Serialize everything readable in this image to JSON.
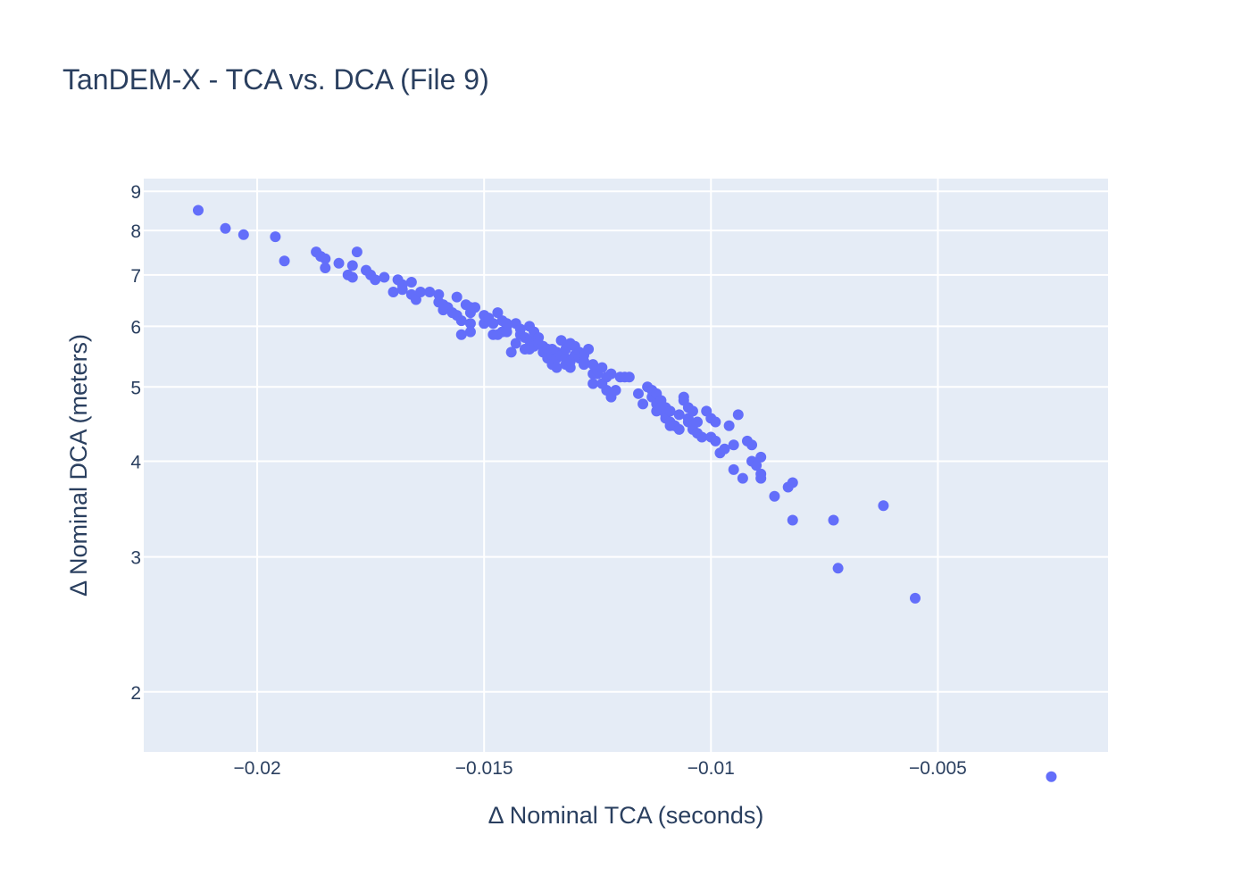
{
  "chart_data": {
    "type": "scatter",
    "title": "TanDEM-X - TCA vs. DCA (File 9)",
    "xlabel": "Δ Nominal TCA (seconds)",
    "ylabel": "Δ Nominal DCA (meters)",
    "xlim": [
      -0.0225,
      -0.00125
    ],
    "ylim": [
      1.67,
      9.35
    ],
    "y_scale": "log",
    "grid": true,
    "legend": "none",
    "colors": {
      "marker": "#636efa",
      "plot_bg": "#e5ecf6",
      "grid": "#ffffff",
      "text": "#2a3f5f"
    },
    "x_ticks": [
      -0.02,
      -0.015,
      -0.01,
      -0.005
    ],
    "x_tick_labels": [
      "−0.02",
      "−0.015",
      "−0.01",
      "−0.005"
    ],
    "y_ticks": [
      2,
      3,
      4,
      5,
      6,
      7,
      8,
      9
    ],
    "y_tick_labels": [
      "2",
      "3",
      "4",
      "5",
      "6",
      "7",
      "8",
      "9"
    ],
    "x": [
      -0.0213,
      -0.0207,
      -0.0203,
      -0.0196,
      -0.0194,
      -0.0187,
      -0.0186,
      -0.0185,
      -0.0185,
      -0.0182,
      -0.018,
      -0.0179,
      -0.0179,
      -0.0178,
      -0.0176,
      -0.0175,
      -0.0174,
      -0.0172,
      -0.017,
      -0.0169,
      -0.0168,
      -0.0168,
      -0.0166,
      -0.0166,
      -0.0165,
      -0.0164,
      -0.0162,
      -0.016,
      -0.016,
      -0.0159,
      -0.0159,
      -0.0158,
      -0.0157,
      -0.0156,
      -0.0156,
      -0.0155,
      -0.0155,
      -0.0154,
      -0.0153,
      -0.0153,
      -0.0153,
      -0.0153,
      -0.0152,
      -0.015,
      -0.015,
      -0.0149,
      -0.0148,
      -0.0148,
      -0.0147,
      -0.0147,
      -0.0146,
      -0.0146,
      -0.0145,
      -0.0145,
      -0.0145,
      -0.0144,
      -0.0143,
      -0.0143,
      -0.0142,
      -0.0142,
      -0.0141,
      -0.0141,
      -0.014,
      -0.014,
      -0.014,
      -0.0139,
      -0.0139,
      -0.0139,
      -0.0138,
      -0.0138,
      -0.0137,
      -0.0137,
      -0.0136,
      -0.0136,
      -0.0135,
      -0.0135,
      -0.0135,
      -0.0134,
      -0.0134,
      -0.0134,
      -0.0133,
      -0.0133,
      -0.0132,
      -0.0132,
      -0.0132,
      -0.0131,
      -0.0131,
      -0.0131,
      -0.013,
      -0.013,
      -0.0129,
      -0.0129,
      -0.0128,
      -0.0128,
      -0.0128,
      -0.0127,
      -0.0126,
      -0.0126,
      -0.0126,
      -0.0125,
      -0.0125,
      -0.0124,
      -0.0124,
      -0.0123,
      -0.0123,
      -0.0122,
      -0.0122,
      -0.0121,
      -0.012,
      -0.0119,
      -0.0118,
      -0.0116,
      -0.0115,
      -0.0114,
      -0.0113,
      -0.0113,
      -0.0112,
      -0.0112,
      -0.0112,
      -0.0111,
      -0.0111,
      -0.011,
      -0.011,
      -0.011,
      -0.0109,
      -0.0109,
      -0.0109,
      -0.0108,
      -0.0108,
      -0.0107,
      -0.0107,
      -0.0106,
      -0.0106,
      -0.0105,
      -0.0105,
      -0.0105,
      -0.0104,
      -0.0104,
      -0.0104,
      -0.0103,
      -0.0103,
      -0.0102,
      -0.0101,
      -0.01,
      -0.01,
      -0.0099,
      -0.0099,
      -0.0098,
      -0.0097,
      -0.0096,
      -0.0095,
      -0.0095,
      -0.0094,
      -0.0093,
      -0.0092,
      -0.0091,
      -0.0091,
      -0.009,
      -0.0089,
      -0.0089,
      -0.0089,
      -0.0086,
      -0.0083,
      -0.0082,
      -0.0082,
      -0.0073,
      -0.0072,
      -0.0062,
      -0.0055,
      -0.0025
    ],
    "y": [
      8.5,
      8.05,
      7.9,
      7.85,
      7.3,
      7.5,
      7.4,
      7.15,
      7.35,
      7.25,
      7.0,
      6.95,
      7.2,
      7.5,
      7.1,
      7.0,
      6.9,
      6.95,
      6.65,
      6.9,
      6.7,
      6.8,
      6.85,
      6.6,
      6.5,
      6.65,
      6.65,
      6.6,
      6.45,
      6.3,
      6.4,
      6.35,
      6.25,
      6.2,
      6.55,
      6.1,
      5.85,
      6.4,
      6.35,
      6.25,
      6.05,
      5.9,
      6.35,
      6.2,
      6.05,
      6.15,
      6.05,
      5.85,
      5.85,
      6.25,
      5.9,
      6.1,
      6.0,
      5.9,
      6.05,
      5.55,
      5.7,
      6.05,
      5.95,
      5.85,
      5.8,
      5.6,
      6.0,
      5.75,
      5.6,
      5.7,
      5.65,
      5.9,
      5.8,
      5.7,
      5.65,
      5.55,
      5.6,
      5.45,
      5.5,
      5.35,
      5.6,
      5.55,
      5.45,
      5.3,
      5.75,
      5.5,
      5.35,
      5.45,
      5.6,
      5.3,
      5.4,
      5.7,
      5.5,
      5.65,
      5.55,
      5.45,
      5.35,
      5.5,
      5.4,
      5.6,
      5.2,
      5.35,
      5.05,
      5.2,
      5.25,
      5.05,
      5.3,
      4.95,
      5.15,
      5.2,
      4.85,
      4.95,
      5.15,
      5.15,
      5.15,
      4.9,
      4.75,
      5.0,
      4.85,
      4.95,
      4.9,
      4.75,
      4.65,
      4.8,
      4.7,
      4.7,
      4.6,
      4.55,
      4.45,
      4.65,
      4.5,
      4.45,
      4.45,
      4.4,
      4.6,
      4.85,
      4.8,
      4.5,
      4.55,
      4.7,
      4.65,
      4.45,
      4.4,
      4.5,
      4.35,
      4.3,
      4.65,
      4.3,
      4.55,
      4.25,
      4.5,
      4.1,
      4.15,
      4.45,
      3.9,
      4.2,
      4.6,
      3.8,
      4.25,
      4.2,
      4.0,
      3.95,
      3.85,
      3.8,
      4.05,
      3.6,
      3.7,
      3.75,
      3.35,
      3.35,
      2.9,
      3.5,
      2.65,
      1.55
    ]
  }
}
